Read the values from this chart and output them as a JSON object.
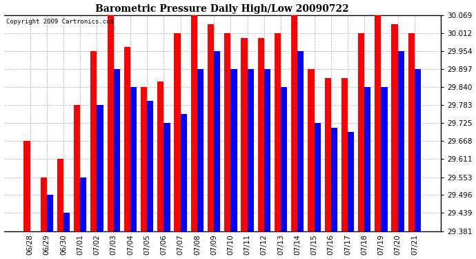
{
  "title": "Barometric Pressure Daily High/Low 20090722",
  "copyright": "Copyright 2009 Cartronics.com",
  "dates": [
    "06/28",
    "06/29",
    "06/30",
    "07/01",
    "07/02",
    "07/03",
    "07/04",
    "07/05",
    "07/06",
    "07/07",
    "07/08",
    "07/09",
    "07/10",
    "07/11",
    "07/12",
    "07/13",
    "07/14",
    "07/15",
    "07/16",
    "07/17",
    "07/18",
    "07/19",
    "07/20",
    "07/21"
  ],
  "highs": [
    29.668,
    29.553,
    29.611,
    29.783,
    29.954,
    30.069,
    29.969,
    29.84,
    29.857,
    30.012,
    30.069,
    30.041,
    30.012,
    29.997,
    29.997,
    30.012,
    30.069,
    29.897,
    29.869,
    29.869,
    30.012,
    30.069,
    30.04,
    30.012
  ],
  "lows": [
    29.381,
    29.496,
    29.439,
    29.553,
    29.783,
    29.897,
    29.84,
    29.797,
    29.725,
    29.754,
    29.897,
    29.954,
    29.897,
    29.897,
    29.897,
    29.84,
    29.954,
    29.725,
    29.71,
    29.697,
    29.84,
    29.84,
    29.954,
    29.897
  ],
  "high_color": "#ff0000",
  "low_color": "#0000ff",
  "bg_color": "#ffffff",
  "grid_color": "#bbbbbb",
  "yticks": [
    29.381,
    29.439,
    29.496,
    29.553,
    29.611,
    29.668,
    29.725,
    29.783,
    29.84,
    29.897,
    29.954,
    30.012,
    30.069
  ],
  "ymin": 29.381,
  "ymax": 30.069,
  "bar_width": 0.38
}
